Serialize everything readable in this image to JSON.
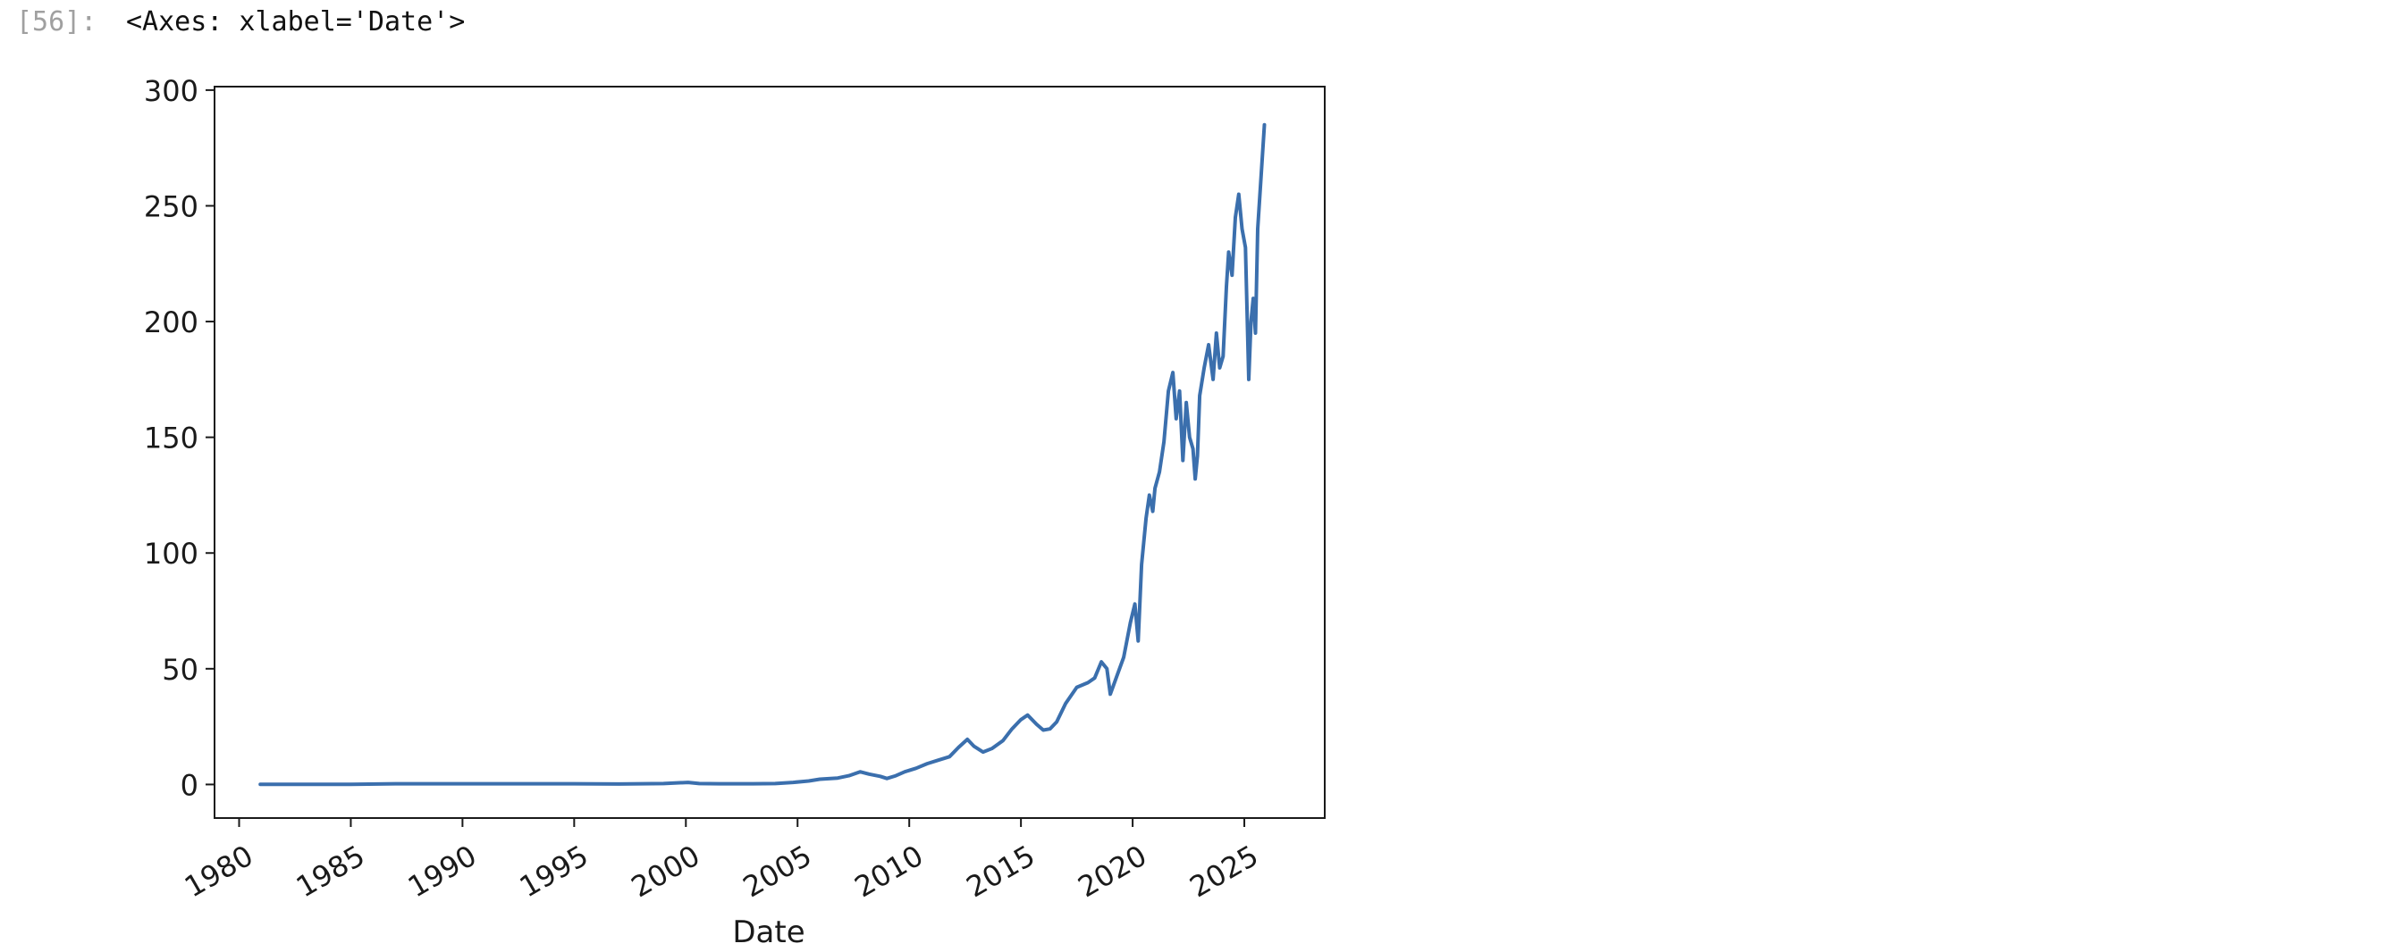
{
  "cell": {
    "prompt": "[56]:",
    "repr": "<Axes: xlabel='Date'>"
  },
  "chart_data": {
    "type": "line",
    "title": "",
    "xlabel": "Date",
    "ylabel": "",
    "xlim": [
      1978.9,
      2028.6
    ],
    "ylim": [
      -14.5,
      301.5
    ],
    "xticks": [
      1980,
      1985,
      1990,
      1995,
      2000,
      2005,
      2010,
      2015,
      2020,
      2025
    ],
    "xtick_labels": [
      "1980",
      "1985",
      "1990",
      "1995",
      "2000",
      "2005",
      "2010",
      "2015",
      "2020",
      "2025"
    ],
    "yticks": [
      0,
      50,
      100,
      150,
      200,
      250,
      300
    ],
    "ytick_labels": [
      "0",
      "50",
      "100",
      "150",
      "200",
      "250",
      "300"
    ],
    "grid": false,
    "line_color": "#3b6fad",
    "series": [
      {
        "x": [
          1980.95,
          1983,
          1985,
          1987,
          1989,
          1991,
          1993,
          1995,
          1997,
          1999,
          2000.1,
          2000.6,
          2001.5,
          2003,
          2004,
          2004.8,
          2005.5,
          2006,
          2006.8,
          2007.3,
          2007.8,
          2008.2,
          2008.7,
          2009.0,
          2009.4,
          2009.8,
          2010.3,
          2010.8,
          2011.3,
          2011.8,
          2012.2,
          2012.6,
          2012.9,
          2013.3,
          2013.7,
          2014.2,
          2014.6,
          2015.0,
          2015.3,
          2015.7,
          2016.0,
          2016.3,
          2016.6,
          2017.0,
          2017.5,
          2018.0,
          2018.3,
          2018.6,
          2018.85,
          2019.0,
          2019.3,
          2019.6,
          2019.9,
          2020.1,
          2020.25,
          2020.4,
          2020.6,
          2020.75,
          2020.9,
          2021.0,
          2021.2,
          2021.4,
          2021.6,
          2021.8,
          2021.95,
          2022.1,
          2022.25,
          2022.4,
          2022.55,
          2022.7,
          2022.8,
          2022.9,
          2023.0,
          2023.2,
          2023.4,
          2023.6,
          2023.75,
          2023.9,
          2024.05,
          2024.2,
          2024.3,
          2024.45,
          2024.6,
          2024.75,
          2024.9,
          2025.05,
          2025.2,
          2025.3,
          2025.4,
          2025.5,
          2025.6,
          2025.7,
          2025.8,
          2025.9
        ],
        "y": [
          0.1,
          0.1,
          0.1,
          0.3,
          0.3,
          0.3,
          0.3,
          0.3,
          0.2,
          0.4,
          0.9,
          0.4,
          0.3,
          0.3,
          0.4,
          0.9,
          1.5,
          2.3,
          2.8,
          3.8,
          5.5,
          4.5,
          3.5,
          2.6,
          3.8,
          5.5,
          7.0,
          9.0,
          10.5,
          12.0,
          16.0,
          19.5,
          16.5,
          14.0,
          15.5,
          19.0,
          24.0,
          28.0,
          30.0,
          26.0,
          23.5,
          24.0,
          27.0,
          35.0,
          42.0,
          44.0,
          46.0,
          53.0,
          50.0,
          39.0,
          47.0,
          55.0,
          70.0,
          78.0,
          62.0,
          95.0,
          115.0,
          125.0,
          118.0,
          128.0,
          135.0,
          148.0,
          170.0,
          178.0,
          158.0,
          170.0,
          140.0,
          165.0,
          150.0,
          145.0,
          132.0,
          142.0,
          168.0,
          180.0,
          190.0,
          175.0,
          195.0,
          180.0,
          185.0,
          215.0,
          230.0,
          220.0,
          245.0,
          255.0,
          240.0,
          232.0,
          175.0,
          200.0,
          210.0,
          195.0,
          240.0,
          255.0,
          270.0,
          285.0
        ]
      }
    ]
  }
}
